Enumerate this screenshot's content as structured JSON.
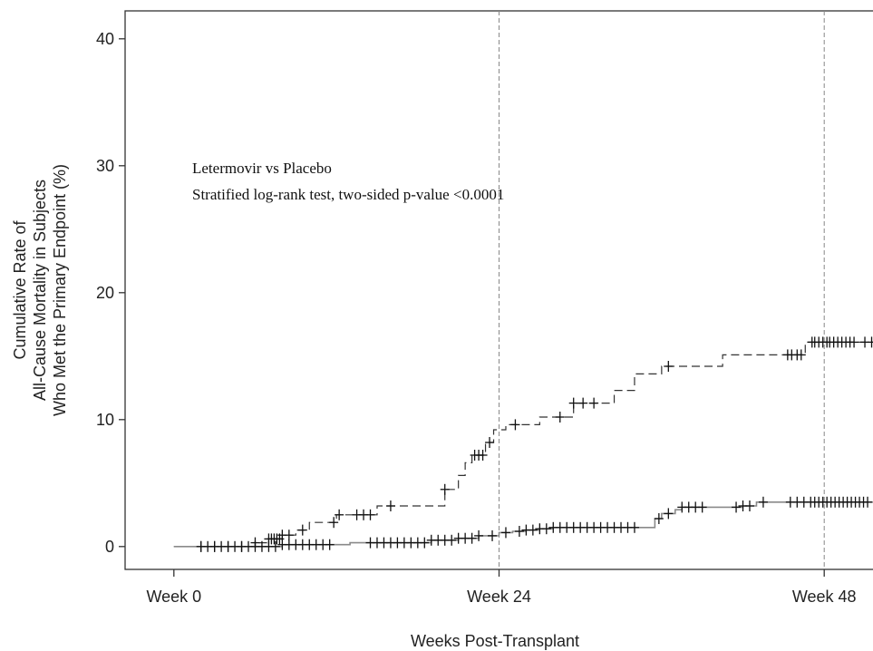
{
  "chart_data": {
    "type": "line",
    "chart_kind": "kaplan-meier cumulative incidence",
    "xlabel": "Weeks Post-Transplant",
    "ylabel_lines": [
      "Cumulative Rate of",
      "All-Cause Mortality in Subjects",
      "Who Met the Primary Endpoint (%)"
    ],
    "x_ticks": [
      {
        "value": 0,
        "label": "Week 0"
      },
      {
        "value": 24,
        "label": "Week 24"
      },
      {
        "value": 48,
        "label": "Week 48"
      }
    ],
    "y_ticks": [
      0,
      10,
      20,
      30,
      40
    ],
    "xlim": [
      -3.6,
      51.6
    ],
    "ylim": [
      -1.8,
      42.2
    ],
    "reference_lines_x": [
      24,
      48
    ],
    "annotation_lines": [
      "Letermovir vs Placebo",
      "Stratified log-rank test, two-sided p-value <0.0001"
    ],
    "grid": false,
    "series": [
      {
        "style": "dashed",
        "color": "#333333",
        "steps": [
          [
            0,
            0
          ],
          [
            6,
            0.3
          ],
          [
            7,
            0.6
          ],
          [
            8,
            0.9
          ],
          [
            9,
            1.3
          ],
          [
            10,
            1.9
          ],
          [
            12,
            2.5
          ],
          [
            15,
            3.2
          ],
          [
            20,
            4.5
          ],
          [
            21,
            5.6
          ],
          [
            21.5,
            6.6
          ],
          [
            22,
            7.2
          ],
          [
            23,
            8.2
          ],
          [
            23.6,
            9.2
          ],
          [
            24.5,
            9.6
          ],
          [
            27,
            10.2
          ],
          [
            29.5,
            11.3
          ],
          [
            32.5,
            12.3
          ],
          [
            34,
            13.6
          ],
          [
            36,
            14.2
          ],
          [
            40.5,
            15.1
          ],
          [
            46.6,
            16.1
          ],
          [
            51.6,
            16.1
          ]
        ],
        "censor_times": [
          2,
          3,
          4,
          5,
          6,
          7,
          7.2,
          7.4,
          7.6,
          7.8,
          8,
          8.5,
          9.5,
          11.8,
          12.2,
          13.5,
          14,
          14.5,
          16,
          20,
          22.2,
          22.5,
          22.8,
          23.3,
          25.2,
          28.5,
          29.5,
          30.2,
          31,
          36.5,
          45.3,
          45.6,
          46,
          46.3,
          47.1,
          47.3,
          47.6,
          47.9,
          48.2,
          48.4,
          48.7,
          49,
          49.3,
          49.6,
          49.9,
          50.2,
          51,
          51.5
        ]
      },
      {
        "style": "solid",
        "color": "#8a8a8a",
        "steps": [
          [
            0,
            0
          ],
          [
            8,
            0.15
          ],
          [
            13,
            0.3
          ],
          [
            19,
            0.5
          ],
          [
            21,
            0.65
          ],
          [
            22.5,
            0.85
          ],
          [
            24,
            1.1
          ],
          [
            25,
            1.2
          ],
          [
            26,
            1.3
          ],
          [
            27,
            1.4
          ],
          [
            28,
            1.5
          ],
          [
            35.5,
            2.2
          ],
          [
            36,
            2.6
          ],
          [
            37,
            2.9
          ],
          [
            37.5,
            3.1
          ],
          [
            42,
            3.2
          ],
          [
            43,
            3.5
          ],
          [
            51.6,
            3.5
          ]
        ],
        "censor_times": [
          2,
          2.5,
          3,
          3.5,
          4,
          4.5,
          5,
          5.5,
          6,
          6.5,
          7,
          7.5,
          8,
          8.5,
          9,
          9.5,
          10,
          10.5,
          11,
          11.5,
          14.5,
          15,
          15.5,
          16,
          16.5,
          17,
          17.5,
          18,
          18.5,
          19,
          19.5,
          20,
          20.5,
          21,
          21.5,
          22,
          22.5,
          23.5,
          24.5,
          25.5,
          26,
          26.5,
          27,
          27.5,
          28,
          28.5,
          29,
          29.5,
          30,
          30.5,
          31,
          31.5,
          32,
          32.5,
          33,
          33.5,
          34,
          35.8,
          36.5,
          37.5,
          38,
          38.5,
          39,
          41.5,
          42,
          42.5,
          43.5,
          45.5,
          46,
          46.5,
          47,
          47.3,
          47.6,
          47.9,
          48.2,
          48.5,
          48.8,
          49.1,
          49.4,
          49.7,
          50,
          50.3,
          50.6,
          50.9,
          51.2
        ]
      }
    ]
  }
}
